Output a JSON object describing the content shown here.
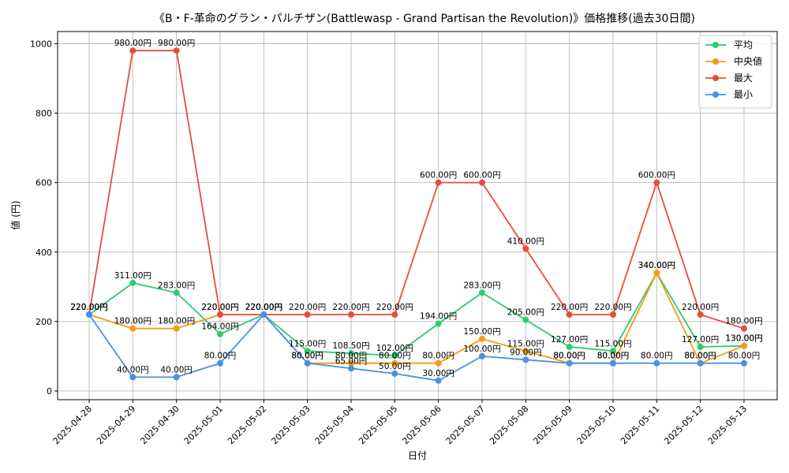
{
  "chart_data": {
    "type": "line",
    "title": "《B・F-革命のグラン・パルチザン(Battlewasp - Grand Partisan the Revolution)》価格推移(過去30日間)",
    "xlabel": "日付",
    "ylabel": "値 (円)",
    "ylim": [
      -25,
      1035
    ],
    "yticks": [
      0,
      200,
      400,
      600,
      800,
      1000
    ],
    "grid": true,
    "legend_position": "top-right",
    "label_suffix": "円",
    "categories": [
      "2025-04-28",
      "2025-04-29",
      "2025-04-30",
      "2025-05-01",
      "2025-05-02",
      "2025-05-03",
      "2025-05-04",
      "2025-05-05",
      "2025-05-06",
      "2025-05-07",
      "2025-05-08",
      "2025-05-09",
      "2025-05-10",
      "2025-05-11",
      "2025-05-12",
      "2025-05-13"
    ],
    "series": [
      {
        "name": "平均",
        "color": "#2ecc71",
        "values": [
          220,
          311,
          283,
          164,
          220,
          115,
          108.5,
          102,
          194,
          283,
          205,
          127,
          115,
          340,
          127,
          130
        ]
      },
      {
        "name": "中央値",
        "color": "#f39c12",
        "values": [
          220,
          180,
          180,
          220,
          220,
          80,
          80,
          80,
          80,
          150,
          115,
          80,
          80,
          340,
          80,
          130
        ]
      },
      {
        "name": "最大",
        "color": "#e74c3c",
        "values": [
          220,
          980,
          980,
          220,
          220,
          220,
          220,
          220,
          600,
          600,
          410,
          220,
          220,
          600,
          220,
          180
        ]
      },
      {
        "name": "最小",
        "color": "#4a90e2",
        "values": [
          220,
          40,
          40,
          80,
          220,
          80,
          65,
          50,
          30,
          100,
          90,
          80,
          80,
          80,
          80,
          80
        ]
      }
    ]
  }
}
